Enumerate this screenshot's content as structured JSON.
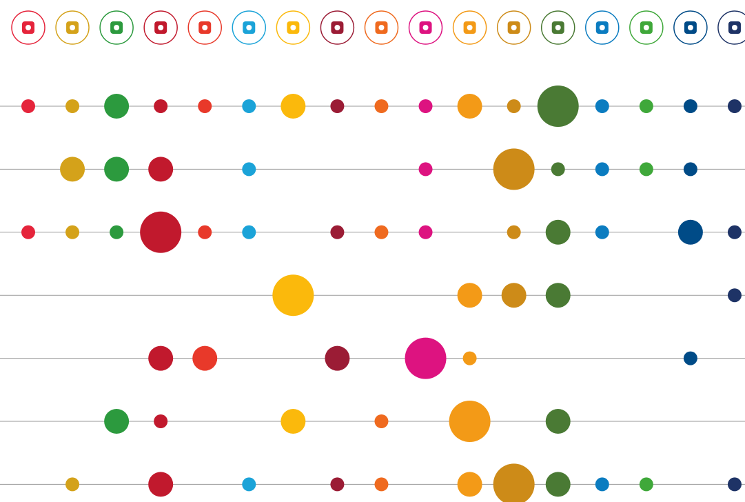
{
  "chart_data": {
    "type": "dot-matrix",
    "colors": [
      "#e5243b",
      "#d4a21a",
      "#2c9a3e",
      "#c1192d",
      "#e8392a",
      "#1ba3d8",
      "#fbb90c",
      "#9b1c35",
      "#ef6a1f",
      "#dd1380",
      "#f39a17",
      "#cd8b18",
      "#4a7a34",
      "#0b7cc0",
      "#3fa83a",
      "#004b87",
      "#1e3366"
    ],
    "series": [
      {
        "values": [
          1,
          1,
          2,
          1,
          1,
          1,
          2,
          1,
          1,
          1,
          2,
          1,
          3,
          1,
          1,
          1,
          1
        ]
      },
      {
        "values": [
          null,
          2,
          2,
          2,
          null,
          1,
          null,
          null,
          null,
          1,
          null,
          3,
          1,
          1,
          1,
          1,
          null
        ]
      },
      {
        "values": [
          1,
          1,
          1,
          3,
          1,
          1,
          null,
          1,
          1,
          1,
          null,
          1,
          2,
          1,
          null,
          2,
          1
        ]
      },
      {
        "values": [
          null,
          null,
          null,
          null,
          null,
          null,
          3,
          null,
          null,
          null,
          2,
          2,
          2,
          null,
          null,
          null,
          1
        ]
      },
      {
        "values": [
          null,
          null,
          null,
          2,
          2,
          null,
          null,
          2,
          null,
          3,
          1,
          null,
          null,
          null,
          null,
          1,
          null
        ]
      },
      {
        "values": [
          null,
          null,
          2,
          1,
          null,
          null,
          2,
          null,
          1,
          null,
          3,
          null,
          2,
          null,
          null,
          null,
          null
        ]
      },
      {
        "values": [
          null,
          1,
          null,
          2,
          null,
          1,
          null,
          1,
          1,
          null,
          2,
          3,
          2,
          1,
          1,
          null,
          1
        ]
      }
    ]
  }
}
